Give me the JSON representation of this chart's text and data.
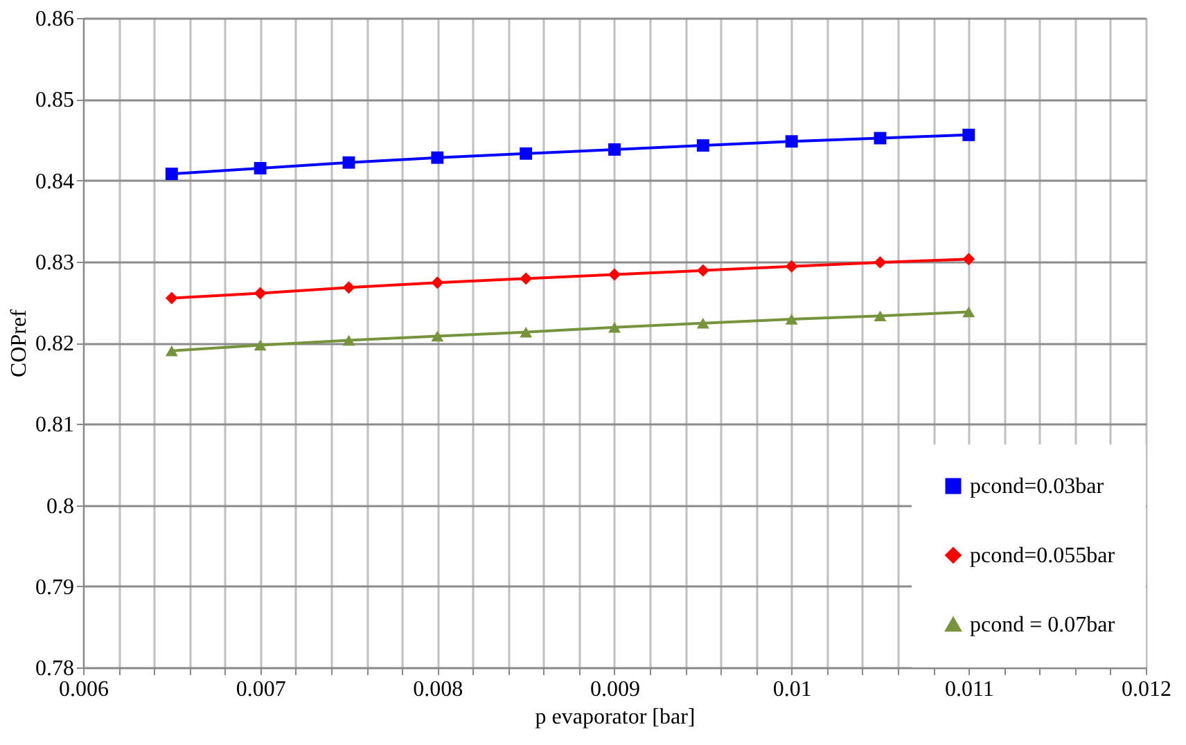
{
  "chart_data": {
    "type": "line",
    "xlabel": "p evaporator [bar]",
    "ylabel": "COPref",
    "x": [
      0.0065,
      0.007,
      0.0075,
      0.008,
      0.0085,
      0.009,
      0.0095,
      0.01,
      0.0105,
      0.011
    ],
    "series": [
      {
        "name": "pcond=0.03bar",
        "color": "#0000ff",
        "marker": "square",
        "values": [
          0.8408,
          0.8415,
          0.8422,
          0.8428,
          0.8433,
          0.8438,
          0.8443,
          0.8448,
          0.8452,
          0.8456
        ]
      },
      {
        "name": "pcond=0.055bar",
        "color": "#ff0000",
        "marker": "diamond",
        "values": [
          0.8255,
          0.8261,
          0.8268,
          0.8274,
          0.8279,
          0.8284,
          0.8289,
          0.8294,
          0.8299,
          0.8303
        ]
      },
      {
        "name": "pcond = 0.07bar",
        "color": "#77933c",
        "marker": "triangle",
        "values": [
          0.819,
          0.8197,
          0.8203,
          0.8208,
          0.8213,
          0.8219,
          0.8224,
          0.8229,
          0.8233,
          0.8238
        ]
      }
    ],
    "xlim": [
      0.006,
      0.012
    ],
    "xticks": [
      0.006,
      {
        "value": 0.0062,
        "label": null
      },
      {
        "value": 0.0064,
        "label": null
      },
      {
        "value": 0.0066,
        "label": null
      },
      {
        "value": 0.0068,
        "label": null
      },
      0.007,
      {
        "value": 0.0072,
        "label": null
      },
      {
        "value": 0.0074,
        "label": null
      },
      {
        "value": 0.0076,
        "label": null
      },
      {
        "value": 0.0078,
        "label": null
      },
      0.008,
      {
        "value": 0.0082,
        "label": null
      },
      {
        "value": 0.0084,
        "label": null
      },
      {
        "value": 0.0086,
        "label": null
      },
      {
        "value": 0.0088,
        "label": null
      },
      0.009,
      {
        "value": 0.0092,
        "label": null
      },
      {
        "value": 0.0094,
        "label": null
      },
      {
        "value": 0.0096,
        "label": null
      },
      {
        "value": 0.0098,
        "label": null
      },
      0.01,
      {
        "value": 0.0102,
        "label": null
      },
      {
        "value": 0.0104,
        "label": null
      },
      {
        "value": 0.0106,
        "label": null
      },
      {
        "value": 0.0108,
        "label": null
      },
      0.011,
      {
        "value": 0.0112,
        "label": null
      },
      {
        "value": 0.0114,
        "label": null
      },
      {
        "value": 0.0116,
        "label": null
      },
      {
        "value": 0.0118,
        "label": null
      },
      0.012
    ],
    "ylim": [
      0.78,
      0.86
    ],
    "yticks": [
      0.78,
      0.79,
      0.8,
      0.81,
      0.82,
      0.83,
      0.84,
      0.85,
      0.86
    ],
    "grid": true,
    "legend": "bottom right",
    "line_style": "solid"
  }
}
